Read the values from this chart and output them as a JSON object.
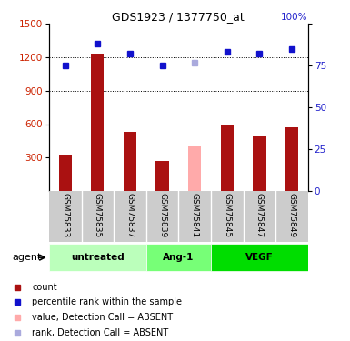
{
  "title": "GDS1923 / 1377750_at",
  "samples": [
    "GSM75833",
    "GSM75835",
    "GSM75837",
    "GSM75839",
    "GSM75841",
    "GSM75845",
    "GSM75847",
    "GSM75849"
  ],
  "groups": [
    {
      "label": "untreated",
      "indices": [
        0,
        1,
        2
      ]
    },
    {
      "label": "Ang-1",
      "indices": [
        3,
        4
      ]
    },
    {
      "label": "VEGF",
      "indices": [
        5,
        6,
        7
      ]
    }
  ],
  "bar_values": [
    320,
    1230,
    530,
    270,
    400,
    590,
    490,
    575
  ],
  "bar_absent": [
    false,
    false,
    false,
    false,
    true,
    false,
    false,
    false
  ],
  "rank_values": [
    75,
    88,
    82,
    75,
    77,
    83,
    82,
    85
  ],
  "rank_absent": [
    false,
    false,
    false,
    false,
    true,
    false,
    false,
    false
  ],
  "bar_color_present": "#aa1111",
  "bar_color_absent": "#ffaaaa",
  "rank_color_present": "#1111cc",
  "rank_color_absent": "#aaaadd",
  "ylim_left": [
    0,
    1500
  ],
  "ylim_right": [
    0,
    100
  ],
  "yticks_left": [
    300,
    600,
    900,
    1200,
    1500
  ],
  "yticks_right": [
    0,
    25,
    50,
    75,
    100
  ],
  "group_colors": {
    "untreated": "#bbffbb",
    "Ang-1": "#77ff77",
    "VEGF": "#00dd00"
  },
  "agent_label": "agent",
  "legend_items": [
    {
      "label": "count",
      "color": "#aa1111"
    },
    {
      "label": "percentile rank within the sample",
      "color": "#1111cc"
    },
    {
      "label": "value, Detection Call = ABSENT",
      "color": "#ffaaaa"
    },
    {
      "label": "rank, Detection Call = ABSENT",
      "color": "#aaaadd"
    }
  ],
  "fig_width": 3.85,
  "fig_height": 3.75,
  "dpi": 100
}
